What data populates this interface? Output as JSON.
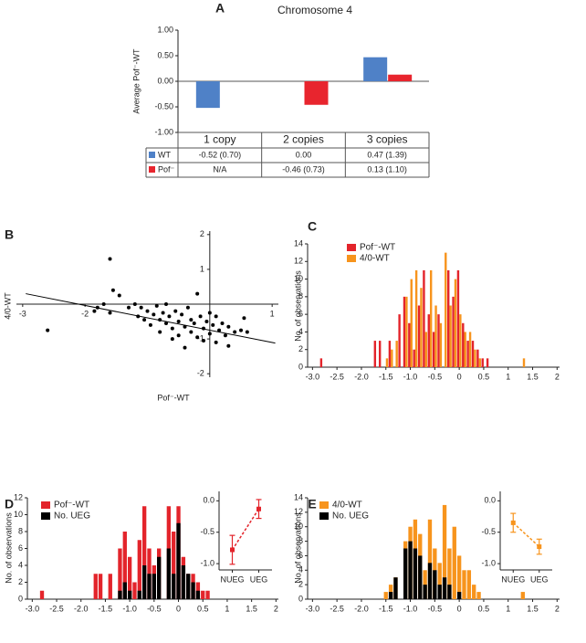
{
  "chart_data": [
    {
      "type": "bar",
      "panel": "A",
      "title": "Chromosome 4",
      "y_label": "Average Pof⁻-WT",
      "categories": [
        "1 copy",
        "2 copies",
        "3 copies"
      ],
      "series": [
        {
          "name": "WT",
          "color": "#4f81c7",
          "values": [
            -0.52,
            0.0,
            0.47
          ],
          "value_labels": [
            "-0.52 (0.70)",
            "0.00",
            "0.47 (1.39)"
          ]
        },
        {
          "name": "Pof⁻",
          "color": "#e8252e",
          "values": [
            null,
            -0.46,
            0.13
          ],
          "value_labels": [
            "N/A",
            "-0.46 (0.73)",
            "0.13 (1.10)"
          ]
        }
      ],
      "ylim": [
        -1,
        1
      ],
      "yticks": [
        {
          "value": -1,
          "label": "-1.00"
        },
        {
          "value": -0.5,
          "label": "-0.50"
        },
        {
          "value": 0,
          "label": "0.00"
        },
        {
          "value": 0.5,
          "label": "0.50"
        },
        {
          "value": 1,
          "label": "1.00"
        }
      ]
    },
    {
      "type": "scatter",
      "panel": "B",
      "x_label": "Pof⁻-WT",
      "y_label": "4/0-WT",
      "color": "#000000",
      "x": [
        -2.6,
        -1.6,
        -1.55,
        -1.7,
        -1.8,
        -1.85,
        -1.6,
        -1.45,
        -1.3,
        -1.2,
        -1.15,
        -1.1,
        -1.05,
        -1.0,
        -0.95,
        -0.9,
        -0.85,
        -0.8,
        -0.8,
        -0.75,
        -0.7,
        -0.7,
        -0.65,
        -0.6,
        -0.6,
        -0.55,
        -0.5,
        -0.5,
        -0.45,
        -0.4,
        -0.4,
        -0.35,
        -0.3,
        -0.3,
        -0.25,
        -0.2,
        -0.2,
        -0.15,
        -0.1,
        -0.1,
        -0.05,
        0.0,
        0.0,
        0.05,
        0.1,
        0.1,
        0.15,
        0.2,
        0.25,
        0.3,
        0.3,
        0.4,
        0.5,
        0.55,
        0.6
      ],
      "values": [
        -0.75,
        1.3,
        0.4,
        0.0,
        -0.1,
        -0.2,
        -0.25,
        0.25,
        -0.1,
        0.0,
        -0.35,
        -0.1,
        -0.45,
        -0.2,
        -0.6,
        -0.3,
        -0.05,
        -0.45,
        -0.8,
        -0.25,
        -0.55,
        0.0,
        -0.35,
        -0.7,
        -1.0,
        -0.2,
        -0.5,
        -0.9,
        -0.3,
        -0.65,
        -1.25,
        -0.1,
        -0.45,
        -0.8,
        -0.55,
        0.3,
        -0.95,
        -0.35,
        -0.7,
        -1.05,
        -0.5,
        -0.25,
        -0.85,
        -0.6,
        -1.1,
        -0.35,
        -0.75,
        -0.55,
        -0.9,
        -1.2,
        -0.65,
        -0.8,
        -0.75,
        -0.4,
        -0.8
      ],
      "fit": {
        "x": [
          -2.95,
          1.05
        ],
        "y": [
          0.3,
          -1.12
        ]
      },
      "xlim": [
        -3.1,
        1.1
      ],
      "ylim": [
        -2.1,
        2.1
      ],
      "xticks": [
        -3,
        -2,
        1
      ],
      "yticks": [
        -2,
        -1,
        1,
        2
      ]
    },
    {
      "type": "bar",
      "panel": "C",
      "y_label": "No. of observations",
      "bar_layout": "grouped",
      "x": [
        -2.8,
        -1.7,
        -1.6,
        -1.5,
        -1.4,
        -1.3,
        -1.2,
        -1.1,
        -1.0,
        -0.9,
        -0.8,
        -0.7,
        -0.6,
        -0.5,
        -0.4,
        -0.3,
        -0.2,
        -0.1,
        0.0,
        0.1,
        0.2,
        0.3,
        0.4,
        0.5,
        0.6,
        1.3
      ],
      "series": [
        {
          "name": "Pof⁻-WT",
          "color": "#e3242b",
          "values": [
            1,
            3,
            3,
            0,
            3,
            0,
            6,
            8,
            5,
            2,
            7,
            11,
            6,
            4,
            6,
            0,
            11,
            8,
            11,
            5,
            3,
            3,
            2,
            1,
            1,
            0
          ]
        },
        {
          "name": "4/0-WT",
          "color": "#f7941d",
          "values": [
            0,
            0,
            0,
            1,
            2,
            3,
            0,
            8,
            10,
            11,
            9,
            4,
            11,
            7,
            5,
            13,
            7,
            10,
            6,
            4,
            4,
            2,
            1,
            0,
            0,
            1
          ]
        }
      ],
      "xlim": [
        -3.1,
        2.05
      ],
      "ylim": [
        0,
        14
      ],
      "yticks": [
        0,
        2,
        4,
        6,
        8,
        10,
        12,
        14
      ],
      "xticks": [
        {
          "value": -3,
          "label": "-3.0"
        },
        -2.5,
        {
          "value": -2,
          "label": "-2.0"
        },
        -1.5,
        {
          "value": -1,
          "label": "-1.0"
        },
        -0.5,
        0,
        0.5,
        1,
        1.5,
        2
      ]
    },
    {
      "type": "bar",
      "panel": "D",
      "y_label": "No. of observations",
      "bar_layout": "overlay",
      "x": [
        -2.8,
        -1.7,
        -1.6,
        -1.5,
        -1.4,
        -1.3,
        -1.2,
        -1.1,
        -1.0,
        -0.9,
        -0.8,
        -0.7,
        -0.6,
        -0.5,
        -0.4,
        -0.3,
        -0.2,
        -0.1,
        0.0,
        0.1,
        0.2,
        0.3,
        0.4,
        0.5,
        0.6,
        1.3
      ],
      "series": [
        {
          "name": "Pof⁻-WT",
          "color": "#e3242b",
          "values": [
            1,
            3,
            3,
            0,
            3,
            0,
            6,
            8,
            5,
            2,
            7,
            11,
            6,
            4,
            6,
            0,
            11,
            8,
            11,
            5,
            3,
            3,
            2,
            1,
            1,
            0
          ]
        },
        {
          "name": "No. UEG",
          "color": "#000000",
          "values": [
            0,
            0,
            0,
            0,
            0,
            0,
            1,
            2,
            1,
            0,
            1,
            4,
            3,
            3,
            5,
            0,
            6,
            3,
            9,
            4,
            3,
            2,
            1,
            0,
            0,
            0
          ]
        }
      ],
      "xlim": [
        -3.1,
        2.05
      ],
      "ylim": [
        0,
        12
      ],
      "yticks": [
        0,
        2,
        4,
        6,
        8,
        10,
        12
      ],
      "xticks": [
        {
          "value": -3,
          "label": "-3.0"
        },
        -2.5,
        {
          "value": -2,
          "label": "-2.0"
        },
        -1.5,
        {
          "value": -1,
          "label": "-1.0"
        },
        -0.5,
        0,
        0.5,
        1,
        1.5,
        2
      ]
    },
    {
      "type": "bar",
      "panel": "E",
      "y_label": "No. of observations",
      "bar_layout": "overlay",
      "x": [
        -2.8,
        -1.7,
        -1.6,
        -1.5,
        -1.4,
        -1.3,
        -1.2,
        -1.1,
        -1.0,
        -0.9,
        -0.8,
        -0.7,
        -0.6,
        -0.5,
        -0.4,
        -0.3,
        -0.2,
        -0.1,
        0.0,
        0.1,
        0.2,
        0.3,
        0.4,
        0.5,
        0.6,
        1.3
      ],
      "series": [
        {
          "name": "4/0-WT",
          "color": "#f7941d",
          "values": [
            0,
            0,
            0,
            1,
            2,
            3,
            0,
            8,
            10,
            11,
            9,
            4,
            11,
            7,
            5,
            13,
            7,
            10,
            6,
            4,
            4,
            2,
            1,
            0,
            0,
            1
          ]
        },
        {
          "name": "No. UEG",
          "color": "#000000",
          "values": [
            0,
            0,
            0,
            0,
            1,
            3,
            0,
            7,
            8,
            7,
            6,
            2,
            5,
            4,
            2,
            3,
            2,
            0,
            1,
            0,
            0,
            0,
            0,
            0,
            0,
            0
          ]
        }
      ],
      "xlim": [
        -3.1,
        2.05
      ],
      "ylim": [
        0,
        14
      ],
      "yticks": [
        0,
        2,
        4,
        6,
        8,
        10,
        12,
        14
      ],
      "xticks": [
        {
          "value": -3,
          "label": "-3.0"
        },
        -2.5,
        {
          "value": -2,
          "label": "-2.0"
        },
        -1.5,
        {
          "value": -1,
          "label": "-1.0"
        },
        -0.5,
        0,
        0.5,
        1,
        1.5,
        2
      ]
    },
    {
      "type": "errorbar",
      "color": "#e3242b",
      "categories": [
        "NUEG",
        "UEG"
      ],
      "values": [
        -0.78,
        -0.13
      ],
      "errors": [
        0.23,
        0.15
      ],
      "ylim": [
        -1.1,
        0.15
      ],
      "yticks": [
        {
          "value": -1,
          "label": "-1.0"
        },
        {
          "value": -0.5,
          "label": "-0.5"
        },
        {
          "value": 0,
          "label": "0.0"
        }
      ]
    },
    {
      "type": "errorbar",
      "color": "#f7941d",
      "categories": [
        "NUEG",
        "UEG"
      ],
      "values": [
        -0.35,
        -0.73
      ],
      "errors": [
        0.15,
        0.12
      ],
      "ylim": [
        -1.1,
        0.15
      ],
      "yticks": [
        {
          "value": -1,
          "label": "-1.0"
        },
        {
          "value": -0.5,
          "label": "-0.5"
        },
        {
          "value": 0,
          "label": "0.0"
        }
      ]
    }
  ]
}
